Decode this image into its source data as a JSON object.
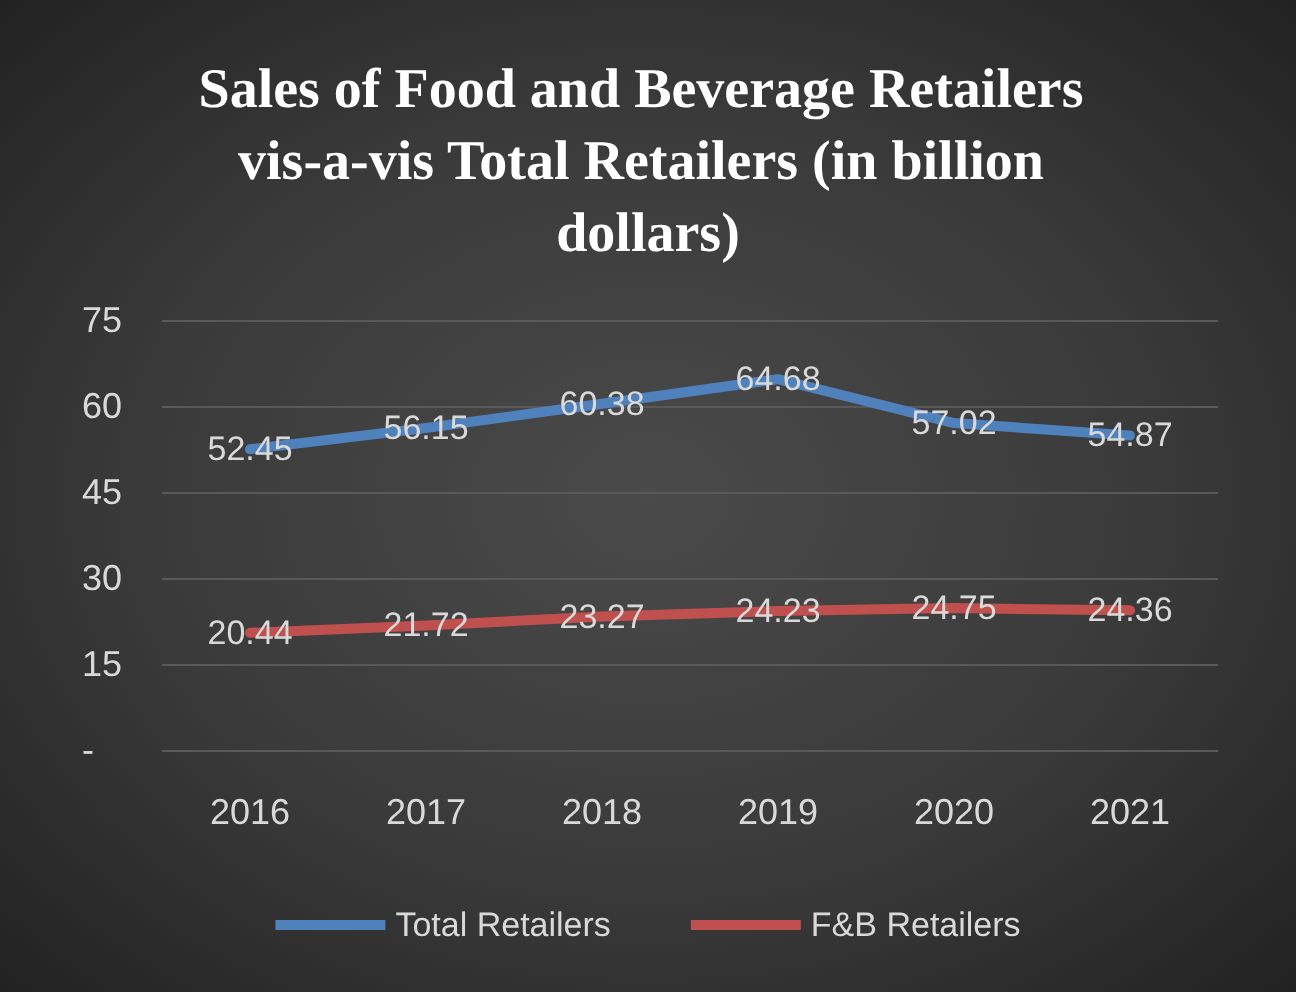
{
  "chart_data": {
    "type": "line",
    "title": "Sales of Food and Beverage Retailers vis-a-vis Total Retailers (in billion dollars)",
    "categories": [
      "2016",
      "2017",
      "2018",
      "2019",
      "2020",
      "2021"
    ],
    "series": [
      {
        "name": "Total Retailers",
        "color": "#4f81bd",
        "values": [
          52.45,
          56.15,
          60.38,
          64.68,
          57.02,
          54.87
        ]
      },
      {
        "name": "F&B Retailers",
        "color": "#c0504d",
        "values": [
          20.44,
          21.72,
          23.27,
          24.23,
          24.75,
          24.36
        ]
      }
    ],
    "ylim": [
      0,
      75
    ],
    "yticks": [
      {
        "value": 0,
        "label": "-"
      },
      15,
      30,
      45,
      60,
      75
    ],
    "grid": "y",
    "legend": "bottom",
    "marker": "none",
    "line_style": "solid",
    "data_labels": true
  }
}
